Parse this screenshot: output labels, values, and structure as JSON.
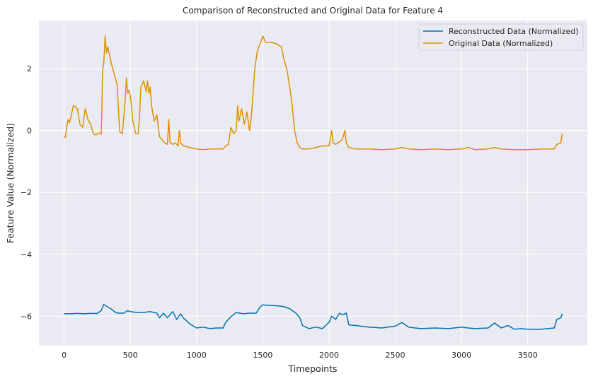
{
  "chart_data": {
    "type": "line",
    "title": "Comparison of Reconstructed and Original Data for Feature 4",
    "xlabel": "Timepoints",
    "ylabel": "Feature Value (Normalized)",
    "xlim": [
      -190,
      3950
    ],
    "ylim": [
      -6.95,
      3.55
    ],
    "xticks": [
      0,
      500,
      1000,
      1500,
      2000,
      2500,
      3000,
      3500
    ],
    "yticks": [
      -6,
      -4,
      -2,
      0,
      2
    ],
    "grid": true,
    "legend_position": "top-right",
    "series": [
      {
        "name": "Reconstructed Data (Normalized)",
        "color": "#0173b2",
        "x": [
          0,
          50,
          100,
          150,
          200,
          250,
          280,
          300,
          320,
          350,
          380,
          400,
          450,
          480,
          500,
          550,
          600,
          650,
          700,
          720,
          750,
          780,
          800,
          820,
          850,
          880,
          900,
          950,
          1000,
          1050,
          1100,
          1150,
          1200,
          1220,
          1250,
          1300,
          1350,
          1400,
          1450,
          1480,
          1500,
          1550,
          1600,
          1650,
          1700,
          1750,
          1780,
          1800,
          1850,
          1900,
          1950,
          2000,
          2020,
          2050,
          2080,
          2100,
          2130,
          2150,
          2200,
          2300,
          2400,
          2500,
          2550,
          2600,
          2650,
          2700,
          2800,
          2900,
          3000,
          3050,
          3100,
          3200,
          3250,
          3300,
          3350,
          3400,
          3450,
          3500,
          3600,
          3700,
          3720,
          3750,
          3760
        ],
        "y": [
          -5.92,
          -5.92,
          -5.91,
          -5.92,
          -5.91,
          -5.91,
          -5.82,
          -5.62,
          -5.68,
          -5.75,
          -5.85,
          -5.9,
          -5.9,
          -5.82,
          -5.85,
          -5.88,
          -5.88,
          -5.85,
          -5.9,
          -6.05,
          -5.9,
          -6.05,
          -5.95,
          -5.85,
          -6.1,
          -5.92,
          -6.05,
          -6.25,
          -6.38,
          -6.35,
          -6.4,
          -6.38,
          -6.38,
          -6.2,
          -6.05,
          -5.88,
          -5.92,
          -5.9,
          -5.9,
          -5.7,
          -5.63,
          -5.65,
          -5.66,
          -5.68,
          -5.75,
          -5.9,
          -6.05,
          -6.3,
          -6.4,
          -6.35,
          -6.4,
          -6.2,
          -6.0,
          -6.1,
          -5.9,
          -5.95,
          -5.9,
          -6.28,
          -6.3,
          -6.35,
          -6.38,
          -6.32,
          -6.2,
          -6.35,
          -6.38,
          -6.4,
          -6.38,
          -6.4,
          -6.35,
          -6.38,
          -6.4,
          -6.38,
          -6.22,
          -6.38,
          -6.3,
          -6.42,
          -6.4,
          -6.42,
          -6.42,
          -6.38,
          -6.1,
          -6.05,
          -5.92
        ]
      },
      {
        "name": "Original Data (Normalized)",
        "color": "#de8f05",
        "x": [
          0,
          10,
          20,
          30,
          40,
          50,
          60,
          70,
          80,
          100,
          120,
          140,
          160,
          180,
          200,
          220,
          240,
          260,
          280,
          285,
          290,
          300,
          310,
          320,
          330,
          340,
          360,
          380,
          400,
          420,
          440,
          460,
          470,
          480,
          490,
          500,
          520,
          540,
          560,
          570,
          580,
          600,
          620,
          630,
          640,
          650,
          660,
          680,
          700,
          720,
          740,
          760,
          780,
          790,
          800,
          820,
          840,
          860,
          870,
          880,
          900,
          950,
          1000,
          1050,
          1100,
          1150,
          1200,
          1220,
          1240,
          1260,
          1280,
          1300,
          1310,
          1320,
          1340,
          1360,
          1380,
          1400,
          1410,
          1420,
          1440,
          1460,
          1480,
          1500,
          1520,
          1560,
          1600,
          1640,
          1660,
          1680,
          1700,
          1720,
          1740,
          1750,
          1760,
          1780,
          1800,
          1850,
          1900,
          1950,
          2000,
          2020,
          2030,
          2050,
          2100,
          2120,
          2130,
          2150,
          2200,
          2300,
          2400,
          2500,
          2550,
          2600,
          2700,
          2800,
          2900,
          3000,
          3050,
          3100,
          3200,
          3250,
          3300,
          3400,
          3500,
          3600,
          3700,
          3720,
          3740,
          3750,
          3760
        ],
        "y": [
          -0.22,
          -0.22,
          0.1,
          0.35,
          0.25,
          0.4,
          0.6,
          0.8,
          0.78,
          0.7,
          0.2,
          0.1,
          0.7,
          0.35,
          0.2,
          -0.1,
          -0.15,
          -0.08,
          -0.12,
          0.6,
          1.9,
          2.2,
          3.05,
          2.5,
          2.7,
          2.5,
          2.1,
          1.8,
          1.5,
          -0.05,
          -0.1,
          0.9,
          1.7,
          1.2,
          1.3,
          1.1,
          0.3,
          -0.1,
          -0.1,
          0.5,
          1.4,
          1.6,
          1.25,
          1.6,
          1.2,
          1.4,
          0.8,
          0.3,
          0.5,
          -0.2,
          -0.3,
          -0.4,
          -0.45,
          0.35,
          -0.4,
          -0.45,
          -0.4,
          -0.5,
          0.0,
          -0.4,
          -0.5,
          -0.55,
          -0.6,
          -0.62,
          -0.6,
          -0.6,
          -0.6,
          -0.5,
          -0.45,
          0.1,
          -0.1,
          0.0,
          0.8,
          0.3,
          0.7,
          0.2,
          0.6,
          0.0,
          0.3,
          0.8,
          2.0,
          2.6,
          2.8,
          3.05,
          2.85,
          2.85,
          2.8,
          2.7,
          2.3,
          2.0,
          1.5,
          0.9,
          0.0,
          -0.2,
          -0.4,
          -0.55,
          -0.6,
          -0.6,
          -0.55,
          -0.5,
          -0.5,
          0.0,
          -0.4,
          -0.45,
          -0.3,
          0.0,
          -0.4,
          -0.55,
          -0.6,
          -0.6,
          -0.62,
          -0.6,
          -0.55,
          -0.6,
          -0.62,
          -0.6,
          -0.62,
          -0.6,
          -0.55,
          -0.62,
          -0.6,
          -0.55,
          -0.6,
          -0.62,
          -0.62,
          -0.6,
          -0.6,
          -0.45,
          -0.42,
          -0.4,
          -0.1
        ]
      }
    ]
  }
}
